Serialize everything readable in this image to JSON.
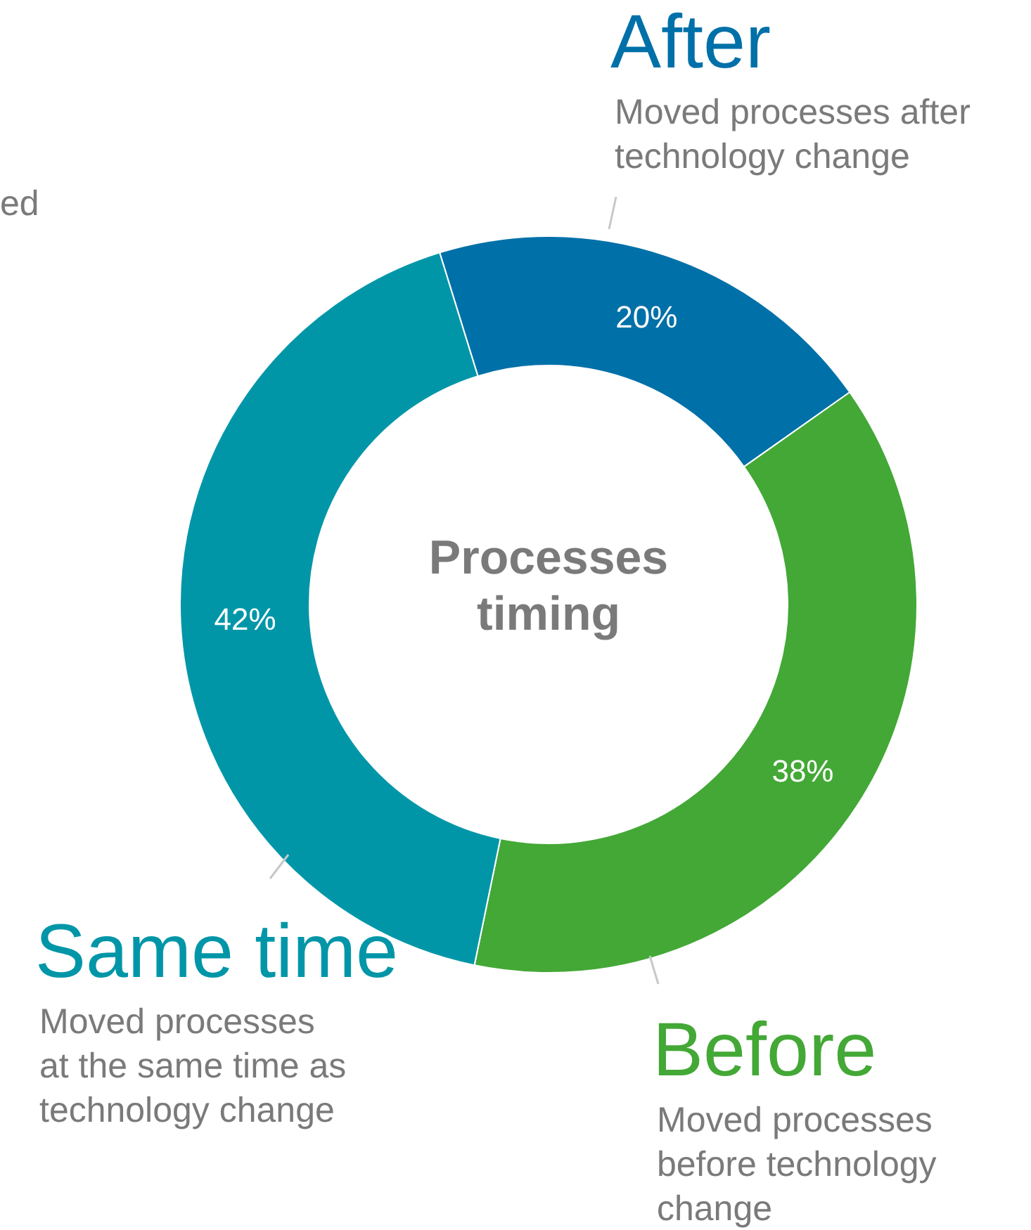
{
  "chart_data": {
    "type": "donut",
    "title": "Processes timing",
    "categories": [
      "After",
      "Before",
      "Same time"
    ],
    "values": [
      20,
      38,
      42
    ],
    "colors": [
      "#0070a8",
      "#43a836",
      "#0096a8"
    ],
    "value_labels": [
      "20%",
      "38%",
      "42%"
    ],
    "annotations": [
      "Moved processes after technology change",
      "Moved processes before technology change",
      "Moved processes at the same time as technology change",
      "ed"
    ]
  }
}
